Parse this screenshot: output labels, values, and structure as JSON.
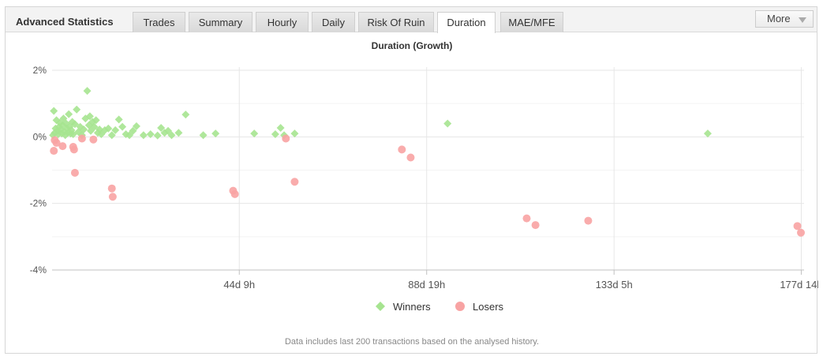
{
  "panel": {
    "title": "Advanced Statistics",
    "tabs": [
      "Trades",
      "Summary",
      "Hourly",
      "Daily",
      "Risk Of Ruin",
      "Duration",
      "MAE/MFE"
    ],
    "active_tab": "Duration",
    "more_label": "More",
    "footnote": "Data includes last 200 transactions based on the analysed history."
  },
  "colors": {
    "winners": "#a6e490",
    "losers": "#f8a3a3",
    "grid": "#e6e6e6",
    "axis": "#c0c0c0"
  },
  "chart_data": {
    "type": "scatter",
    "title": "Duration (Growth)",
    "xlabel": "",
    "ylabel": "",
    "xlim_hours": [
      0,
      4260
    ],
    "ylim": [
      -4,
      2
    ],
    "y_ticks": [
      2,
      0,
      -2,
      -4
    ],
    "y_tick_labels": [
      "2%",
      "0%",
      "-2%",
      "-4%"
    ],
    "x_ticks_hours": [
      1065,
      2131,
      3197,
      4262
    ],
    "x_tick_labels": [
      "44d 9h",
      "88d 19h",
      "133d 5h",
      "177d 14h"
    ],
    "grid": true,
    "legend_position": "bottom-center",
    "series": [
      {
        "name": "Winners",
        "marker": "diamond",
        "points": [
          [
            5,
            0.05
          ],
          [
            10,
            0.78
          ],
          [
            15,
            0.12
          ],
          [
            20,
            0.25
          ],
          [
            25,
            0.5
          ],
          [
            30,
            0.18
          ],
          [
            35,
            0.08
          ],
          [
            40,
            0.3
          ],
          [
            45,
            0.42
          ],
          [
            50,
            0.22
          ],
          [
            55,
            0.1
          ],
          [
            60,
            0.35
          ],
          [
            65,
            0.55
          ],
          [
            70,
            0.15
          ],
          [
            75,
            0.05
          ],
          [
            80,
            0.4
          ],
          [
            85,
            0.25
          ],
          [
            90,
            0.12
          ],
          [
            95,
            0.68
          ],
          [
            100,
            0.3
          ],
          [
            105,
            0.1
          ],
          [
            110,
            0.2
          ],
          [
            115,
            0.45
          ],
          [
            120,
            0.08
          ],
          [
            130,
            0.38
          ],
          [
            140,
            0.82
          ],
          [
            150,
            0.15
          ],
          [
            160,
            0.3
          ],
          [
            170,
            0.05
          ],
          [
            180,
            0.22
          ],
          [
            190,
            0.55
          ],
          [
            200,
            1.38
          ],
          [
            210,
            0.35
          ],
          [
            215,
            0.62
          ],
          [
            220,
            0.18
          ],
          [
            230,
            0.45
          ],
          [
            240,
            0.3
          ],
          [
            250,
            0.5
          ],
          [
            260,
            0.12
          ],
          [
            270,
            0.22
          ],
          [
            280,
            0.08
          ],
          [
            300,
            0.2
          ],
          [
            320,
            0.25
          ],
          [
            340,
            0.05
          ],
          [
            360,
            0.2
          ],
          [
            380,
            0.52
          ],
          [
            400,
            0.3
          ],
          [
            420,
            0.08
          ],
          [
            440,
            0.05
          ],
          [
            460,
            0.18
          ],
          [
            480,
            0.32
          ],
          [
            520,
            0.05
          ],
          [
            560,
            0.08
          ],
          [
            600,
            0.04
          ],
          [
            620,
            0.27
          ],
          [
            640,
            0.12
          ],
          [
            660,
            0.18
          ],
          [
            680,
            0.05
          ],
          [
            720,
            0.12
          ],
          [
            760,
            0.67
          ],
          [
            860,
            0.05
          ],
          [
            930,
            0.1
          ],
          [
            1150,
            0.1
          ],
          [
            1270,
            0.08
          ],
          [
            1300,
            0.27
          ],
          [
            1320,
            0.05
          ],
          [
            1380,
            0.1
          ],
          [
            2250,
            0.4
          ],
          [
            3730,
            0.1
          ]
        ]
      },
      {
        "name": "Losers",
        "marker": "circle",
        "points": [
          [
            10,
            -0.42
          ],
          [
            15,
            -0.1
          ],
          [
            25,
            -0.18
          ],
          [
            60,
            -0.28
          ],
          [
            120,
            -0.3
          ],
          [
            125,
            -0.38
          ],
          [
            130,
            -1.08
          ],
          [
            170,
            -0.05
          ],
          [
            235,
            -0.08
          ],
          [
            340,
            -1.55
          ],
          [
            345,
            -1.8
          ],
          [
            1030,
            -1.62
          ],
          [
            1040,
            -1.72
          ],
          [
            1330,
            -0.05
          ],
          [
            1380,
            -1.35
          ],
          [
            1990,
            -0.38
          ],
          [
            2040,
            -0.62
          ],
          [
            2700,
            -2.45
          ],
          [
            2750,
            -2.65
          ],
          [
            3050,
            -2.52
          ],
          [
            4240,
            -2.68
          ],
          [
            4260,
            -2.88
          ]
        ]
      }
    ]
  }
}
